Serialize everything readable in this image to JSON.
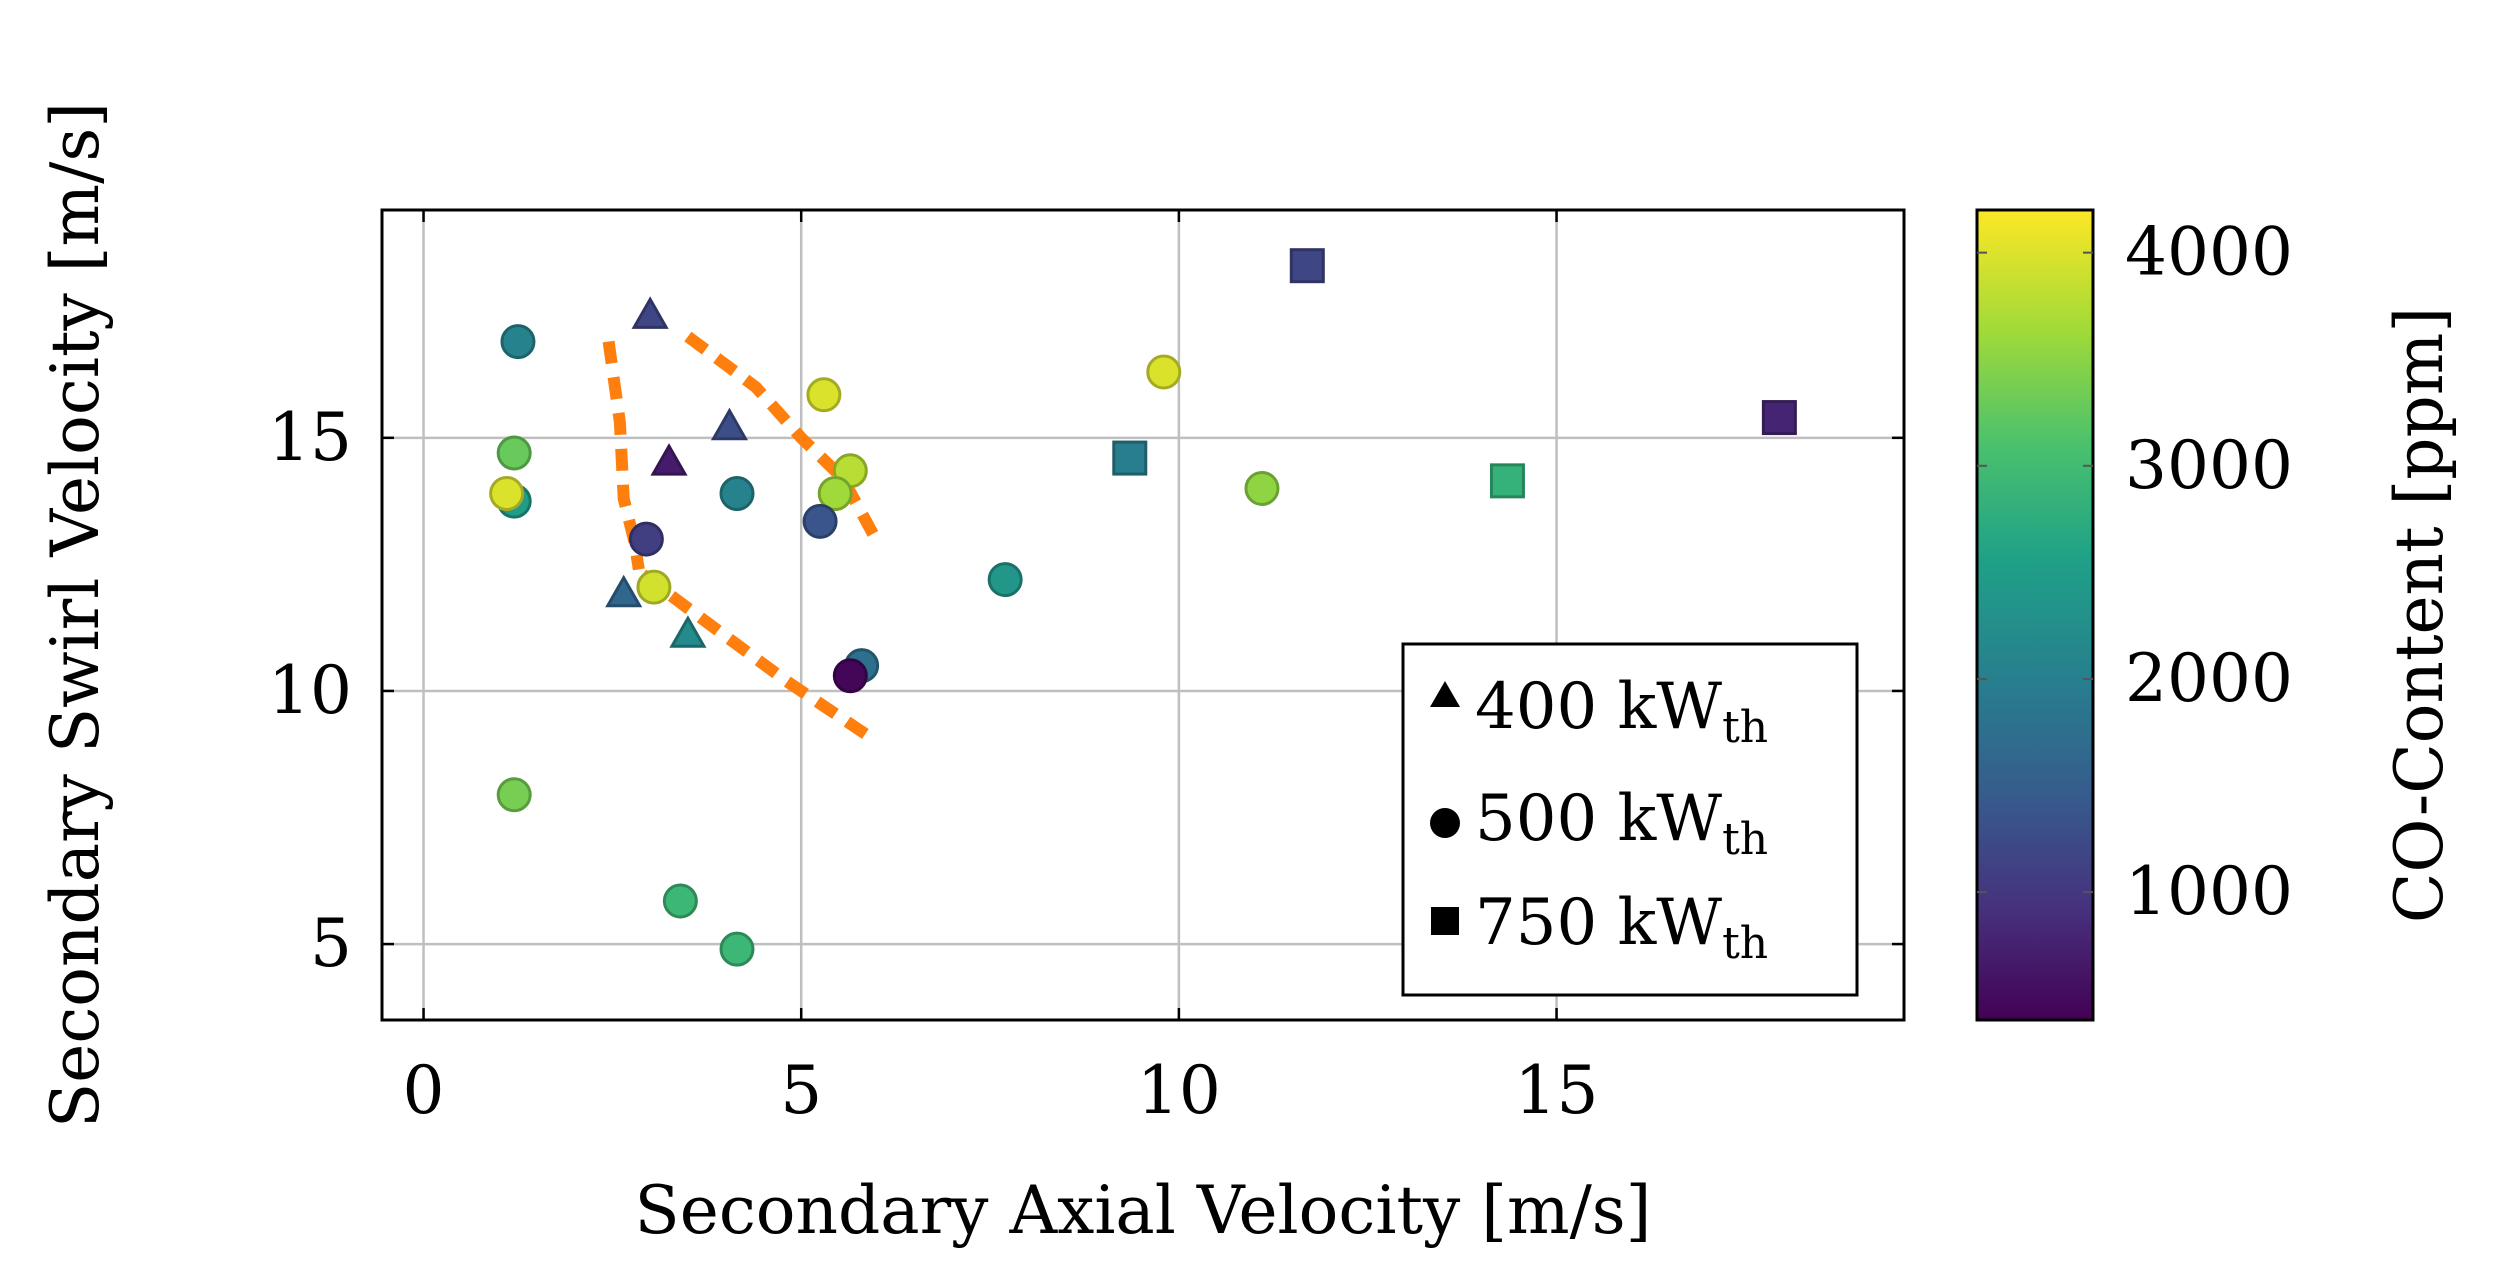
{
  "chart_data": {
    "type": "scatter",
    "title": "",
    "xlabel": "Secondary Axial Velocity [m/s]",
    "ylabel": "Secondary Swirl Velocity [m/s]",
    "xlim": [
      -0.55,
      19.6
    ],
    "ylim": [
      3.5,
      19.5
    ],
    "xticks": [
      0,
      5,
      10,
      15
    ],
    "yticks": [
      5,
      10,
      15
    ],
    "grid": true,
    "colorbar": {
      "label": "CO-Content [ppm]",
      "range": [
        400,
        4200
      ],
      "ticks": [
        1000,
        2000,
        3000,
        4000
      ],
      "colormap": [
        "#440154",
        "#46327e",
        "#365c8d",
        "#277f8e",
        "#1fa187",
        "#4ac16d",
        "#a0da39",
        "#fde725"
      ]
    },
    "legend": {
      "placement": "bottom-right",
      "entries": [
        {
          "marker": "triangle",
          "label": "400 kW",
          "subscript": "th"
        },
        {
          "marker": "circle",
          "label": "500 kW",
          "subscript": "th"
        },
        {
          "marker": "square",
          "label": "750 kW",
          "subscript": "th"
        }
      ]
    },
    "series": [
      {
        "name": "400 kWth",
        "marker": "triangle",
        "points": [
          {
            "x": 3.0,
            "y": 17.4,
            "co": 1200
          },
          {
            "x": 4.05,
            "y": 15.2,
            "co": 1300
          },
          {
            "x": 3.25,
            "y": 14.5,
            "co": 700
          },
          {
            "x": 2.65,
            "y": 11.9,
            "co": 1650
          },
          {
            "x": 3.5,
            "y": 11.1,
            "co": 2200
          }
        ]
      },
      {
        "name": "500 kWth",
        "marker": "circle",
        "points": [
          {
            "x": 1.25,
            "y": 16.9,
            "co": 2100
          },
          {
            "x": 1.2,
            "y": 14.7,
            "co": 3300
          },
          {
            "x": 1.2,
            "y": 13.75,
            "co": 2500
          },
          {
            "x": 1.1,
            "y": 13.9,
            "co": 4000
          },
          {
            "x": 2.95,
            "y": 13.0,
            "co": 1100
          },
          {
            "x": 3.05,
            "y": 12.05,
            "co": 3950
          },
          {
            "x": 4.15,
            "y": 13.9,
            "co": 2100
          },
          {
            "x": 5.3,
            "y": 15.85,
            "co": 4000
          },
          {
            "x": 5.65,
            "y": 14.35,
            "co": 3800
          },
          {
            "x": 5.45,
            "y": 13.9,
            "co": 3650
          },
          {
            "x": 5.25,
            "y": 13.35,
            "co": 1400
          },
          {
            "x": 5.8,
            "y": 10.5,
            "co": 1800
          },
          {
            "x": 5.65,
            "y": 10.3,
            "co": 450
          },
          {
            "x": 7.7,
            "y": 12.2,
            "co": 2400
          },
          {
            "x": 9.8,
            "y": 16.3,
            "co": 4000
          },
          {
            "x": 11.1,
            "y": 14.0,
            "co": 3550
          },
          {
            "x": 1.2,
            "y": 7.95,
            "co": 3400
          },
          {
            "x": 3.4,
            "y": 5.85,
            "co": 2950
          },
          {
            "x": 4.15,
            "y": 4.9,
            "co": 2950
          }
        ]
      },
      {
        "name": "750 kWth",
        "marker": "square",
        "points": [
          {
            "x": 11.7,
            "y": 18.4,
            "co": 1200
          },
          {
            "x": 17.95,
            "y": 15.4,
            "co": 800
          },
          {
            "x": 9.35,
            "y": 14.6,
            "co": 2000
          },
          {
            "x": 14.35,
            "y": 14.15,
            "co": 2850
          }
        ]
      }
    ],
    "boundary_lines": [
      {
        "color": "#ff7f0e",
        "points": [
          [
            2.45,
            16.9
          ],
          [
            2.6,
            15.3
          ],
          [
            2.65,
            13.8
          ],
          [
            2.8,
            12.9
          ],
          [
            2.85,
            12.4
          ]
        ]
      },
      {
        "color": "#ff7f0e",
        "points": [
          [
            3.5,
            17.0
          ],
          [
            4.4,
            16.0
          ],
          [
            5.0,
            15.0
          ],
          [
            5.55,
            14.2
          ],
          [
            5.95,
            13.1
          ]
        ]
      },
      {
        "color": "#ff7f0e",
        "points": [
          [
            2.9,
            12.3
          ],
          [
            3.8,
            11.3
          ],
          [
            4.8,
            10.2
          ],
          [
            5.9,
            9.1
          ]
        ]
      }
    ]
  }
}
